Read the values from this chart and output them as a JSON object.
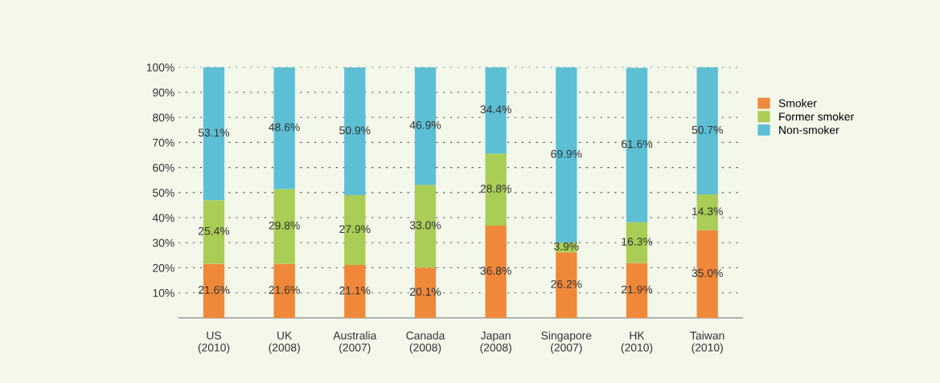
{
  "chart_data": {
    "type": "bar",
    "stacked": true,
    "categories": [
      "US\n(2010)",
      "UK\n(2008)",
      "Australia\n(2007)",
      "Canada\n(2008)",
      "Japan\n(2008)",
      "Singapore\n(2007)",
      "HK\n(2010)",
      "Taiwan\n(2010)"
    ],
    "series": [
      {
        "name": "Smoker",
        "color": "#f0883a",
        "values": [
          21.6,
          21.6,
          21.1,
          20.1,
          36.8,
          26.2,
          21.9,
          35.0
        ],
        "value_labels": [
          "21.6%",
          "21.6%",
          "21.1%",
          "20.1%",
          "36.8%",
          "26.2%",
          "21.9%",
          "35.0%"
        ]
      },
      {
        "name": "Former smoker",
        "color": "#a9cd55",
        "values": [
          25.4,
          29.8,
          27.9,
          33.0,
          28.8,
          3.9,
          16.3,
          14.3
        ],
        "value_labels": [
          "25.4%",
          "29.8%",
          "27.9%",
          "33.0%",
          "28.8%",
          "3.9%",
          "16.3%",
          "14.3%"
        ]
      },
      {
        "name": "Non-smoker",
        "color": "#5dbfd5",
        "values": [
          53.1,
          48.6,
          50.9,
          46.9,
          34.4,
          69.9,
          61.6,
          50.7
        ],
        "value_labels": [
          "53.1%",
          "48.6%",
          "50.9%",
          "46.9%",
          "34.4%",
          "69.9%",
          "61.6%",
          "50.7%"
        ]
      }
    ],
    "ylim": [
      0,
      100.1
    ],
    "yticks": [
      {
        "value": 10,
        "label": "10%"
      },
      {
        "value": 20,
        "label": "20%"
      },
      {
        "value": 30,
        "label": "30%"
      },
      {
        "value": 40,
        "label": "40%"
      },
      {
        "value": 50,
        "label": "50%"
      },
      {
        "value": 60,
        "label": "60%"
      },
      {
        "value": 70,
        "label": "70%"
      },
      {
        "value": 80,
        "label": "80%"
      },
      {
        "value": 90,
        "label": "90%"
      },
      {
        "value": 100,
        "label": "100%"
      }
    ],
    "grid": "y",
    "legend": "right"
  }
}
